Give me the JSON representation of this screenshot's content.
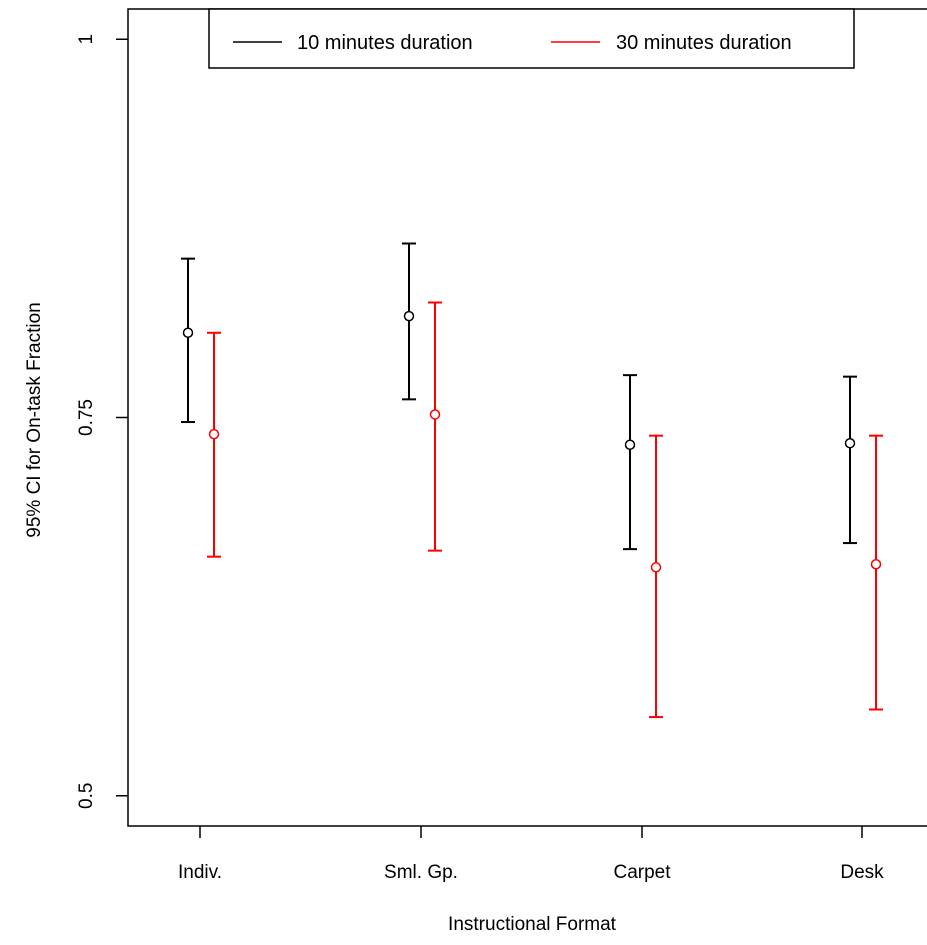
{
  "chart_data": {
    "type": "errorbar",
    "title": "",
    "xlabel": "Instructional Format",
    "ylabel": "95% CI for On-task Fraction",
    "categories": [
      "Indiv.",
      "Sml. Gp.",
      "Carpet",
      "Desk"
    ],
    "ylim": [
      0.48,
      1.02
    ],
    "yticks": [
      0.5,
      0.75,
      1
    ],
    "ytick_labels": [
      "0.5",
      "0.75",
      "1"
    ],
    "legend_position": "top",
    "grid": false,
    "series": [
      {
        "name": "10 minutes duration",
        "color": "#000000",
        "estimates": [
          0.806,
          0.817,
          0.732,
          0.733
        ],
        "lower": [
          0.747,
          0.762,
          0.663,
          0.667
        ],
        "upper": [
          0.855,
          0.865,
          0.778,
          0.777
        ]
      },
      {
        "name": "30 minutes duration",
        "color": "#ff0000",
        "estimates": [
          0.739,
          0.752,
          0.651,
          0.653
        ],
        "lower": [
          0.658,
          0.662,
          0.552,
          0.557
        ],
        "upper": [
          0.806,
          0.826,
          0.738,
          0.738
        ]
      }
    ]
  }
}
